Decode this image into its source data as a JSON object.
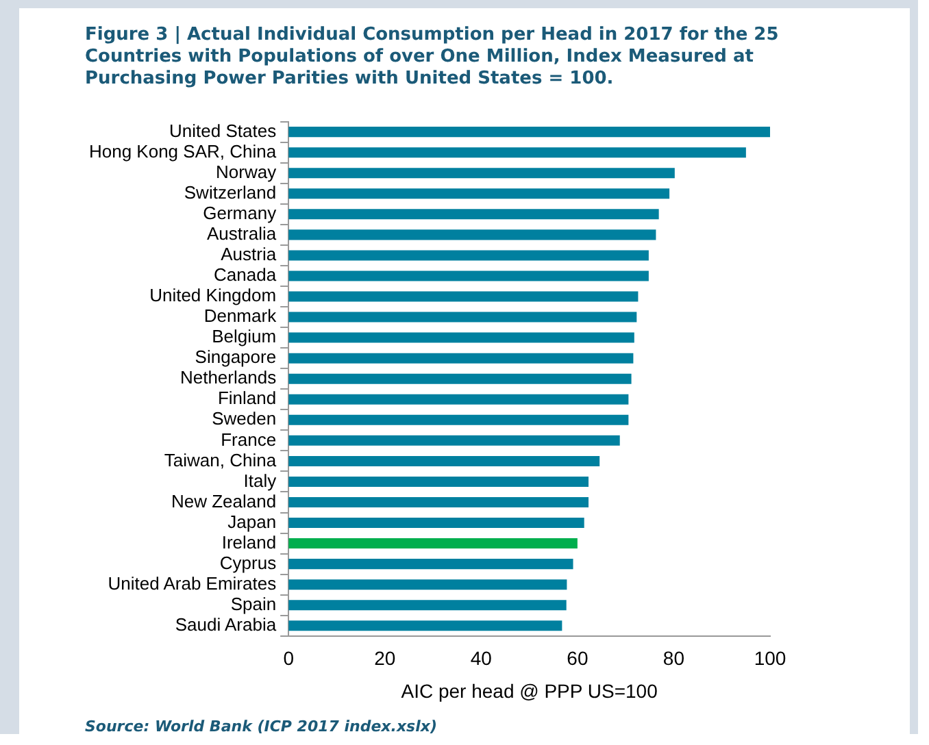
{
  "chart_data": {
    "type": "bar",
    "orientation": "horizontal",
    "title": "Figure 3 | Actual Individual Consumption per Head in 2017 for the 25 Countries with Populations of over One Million, Index Measured at Purchasing Power Parities with United States = 100.",
    "xlabel": "AIC per head @ PPP US=100",
    "categories": [
      "United States",
      "Hong Kong SAR, China",
      "Norway",
      "Switzerland",
      "Germany",
      "Australia",
      "Austria",
      "Canada",
      "United Kingdom",
      "Denmark",
      "Belgium",
      "Singapore",
      "Netherlands",
      "Finland",
      "Sweden",
      "France",
      "Taiwan, China",
      "Italy",
      "New Zealand",
      "Japan",
      "Ireland",
      "Cyprus",
      "United Arab Emirates",
      "Spain",
      "Saudi Arabia"
    ],
    "values": [
      100,
      95,
      80.2,
      79.1,
      76.9,
      76.3,
      74.8,
      74.8,
      72.6,
      72.3,
      71.8,
      71.6,
      71.2,
      70.6,
      70.6,
      68.8,
      64.6,
      62.3,
      62.3,
      61.4,
      60,
      59.1,
      57.8,
      57.7,
      56.8
    ],
    "colors": [
      "#00809f",
      "#00809f",
      "#00809f",
      "#00809f",
      "#00809f",
      "#00809f",
      "#00809f",
      "#00809f",
      "#00809f",
      "#00809f",
      "#00809f",
      "#00809f",
      "#00809f",
      "#00809f",
      "#00809f",
      "#00809f",
      "#00809f",
      "#00809f",
      "#00809f",
      "#00809f",
      "#00ae4d",
      "#00809f",
      "#00809f",
      "#00809f",
      "#00809f"
    ],
    "xlim": [
      0,
      100
    ],
    "xticks": [
      0,
      20,
      40,
      60,
      80,
      100
    ],
    "grid": false,
    "legend": false,
    "annotations": [
      "Source: World Bank (ICP 2017 index.xslx)"
    ]
  }
}
